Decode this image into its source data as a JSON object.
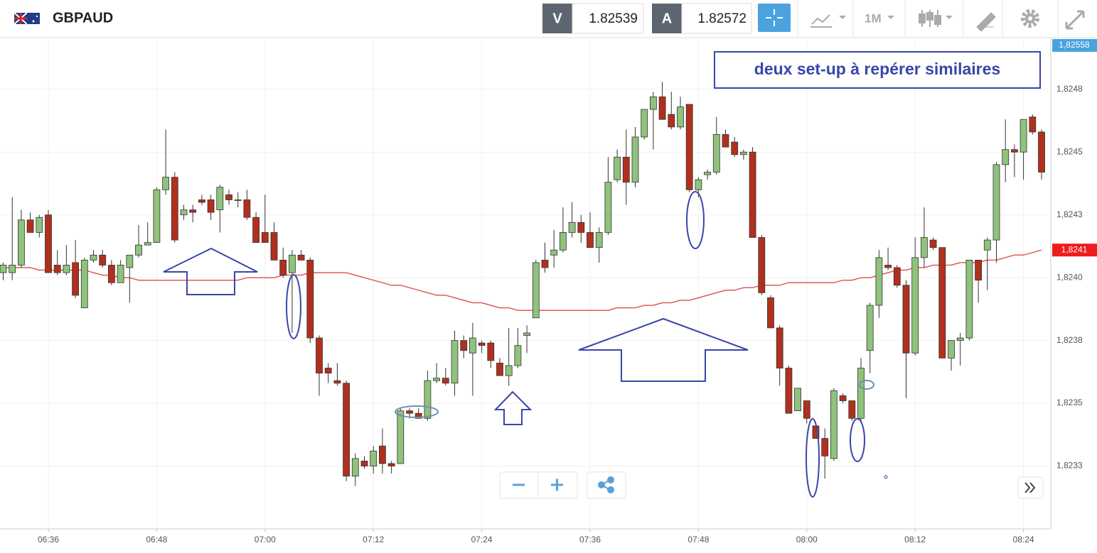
{
  "header": {
    "symbol": "GBPAUD",
    "bid_label": "V",
    "bid": 1.82539,
    "ask_label": "A",
    "ask": 1.82572,
    "timeframe": "1M"
  },
  "chart_data": {
    "type": "candlestick",
    "annotation": "deux set-up à repérer similaires",
    "up_color": "#8fc27c",
    "down_color": "#b1301d",
    "x": [
      "06:31",
      "06:32",
      "06:33",
      "06:34",
      "06:35",
      "06:36",
      "06:37",
      "06:38",
      "06:39",
      "06:40",
      "06:41",
      "06:42",
      "06:43",
      "06:44",
      "06:45",
      "06:46",
      "06:47",
      "06:48",
      "06:49",
      "06:50",
      "06:51",
      "06:52",
      "06:53",
      "06:54",
      "06:55",
      "06:56",
      "06:57",
      "06:58",
      "06:59",
      "07:00",
      "07:01",
      "07:02",
      "07:03",
      "07:04",
      "07:05",
      "07:06",
      "07:07",
      "07:08",
      "07:09",
      "07:10",
      "07:11",
      "07:12",
      "07:13",
      "07:14",
      "07:15",
      "07:16",
      "07:17",
      "07:18",
      "07:19",
      "07:20",
      "07:21",
      "07:22",
      "07:23",
      "07:24",
      "07:25",
      "07:26",
      "07:27",
      "07:28",
      "07:29",
      "07:30",
      "07:31",
      "07:32",
      "07:33",
      "07:34",
      "07:35",
      "07:36",
      "07:37",
      "07:38",
      "07:39",
      "07:40",
      "07:41",
      "07:42",
      "07:43",
      "07:44",
      "07:45",
      "07:46",
      "07:47",
      "07:48",
      "07:49",
      "07:50",
      "07:51",
      "07:52",
      "07:53",
      "07:54",
      "07:55",
      "07:56",
      "07:57",
      "07:58",
      "07:59",
      "08:00",
      "08:01",
      "08:02",
      "08:03",
      "08:04",
      "08:05",
      "08:06",
      "08:07",
      "08:08",
      "08:09",
      "08:10",
      "08:11",
      "08:12",
      "08:13",
      "08:14",
      "08:15",
      "08:16",
      "08:17",
      "08:18",
      "08:19",
      "08:20",
      "08:21",
      "08:22",
      "08:23",
      "08:24",
      "08:25",
      "08:26"
    ],
    "open": [
      1.82402,
      1.82402,
      1.82405,
      1.82423,
      1.82418,
      1.82425,
      1.82405,
      1.82402,
      1.82406,
      1.82388,
      1.82407,
      1.82409,
      1.82405,
      1.82398,
      1.82404,
      1.82409,
      1.82413,
      1.82414,
      1.82435,
      1.8244,
      1.82425,
      1.82427,
      1.82431,
      1.82431,
      1.82427,
      1.82433,
      1.82431,
      1.82431,
      1.82424,
      1.82418,
      1.82418,
      1.82407,
      1.82402,
      1.82409,
      1.82407,
      1.82376,
      1.82364,
      1.82359,
      1.82358,
      1.82321,
      1.82327,
      1.82325,
      1.82333,
      1.82326,
      1.82326,
      1.82347,
      1.82346,
      1.82344,
      1.82359,
      1.8236,
      1.82358,
      1.82375,
      1.8237,
      1.82374,
      1.82374,
      1.82366,
      1.82361,
      1.82365,
      1.82377,
      1.82384,
      1.82407,
      1.82409,
      1.82411,
      1.82418,
      1.82422,
      1.82418,
      1.82412,
      1.82418,
      1.82439,
      1.82448,
      1.82438,
      1.82456,
      1.82467,
      1.82472,
      1.82465,
      1.8246,
      1.82469,
      1.82435,
      1.82441,
      1.82442,
      1.82457,
      1.82454,
      1.82449,
      1.8245,
      1.82416,
      1.82392,
      1.8238,
      1.82364,
      1.82347,
      1.82351,
      1.82341,
      1.82336,
      1.82328,
      1.82353,
      1.82351,
      1.82344,
      1.82371,
      1.82389,
      1.82405,
      1.82404,
      1.82397,
      1.8237,
      1.82408,
      1.82415,
      1.82412,
      1.82368,
      1.82375,
      1.82376,
      1.82407,
      1.82411,
      1.82415,
      1.82445,
      1.82451,
      1.8245,
      1.82464,
      1.82458
    ],
    "high": [
      1.82406,
      1.82432,
      1.82427,
      1.82426,
      1.82425,
      1.82427,
      1.82411,
      1.82413,
      1.82415,
      1.82408,
      1.82411,
      1.82411,
      1.82407,
      1.82407,
      1.82409,
      1.82421,
      1.82422,
      1.82436,
      1.82459,
      1.82442,
      1.82429,
      1.82429,
      1.82433,
      1.82433,
      1.82437,
      1.82435,
      1.82434,
      1.82435,
      1.82426,
      1.82433,
      1.82422,
      1.82412,
      1.82411,
      1.82411,
      1.82408,
      1.82377,
      1.82366,
      1.82366,
      1.82359,
      1.8233,
      1.82329,
      1.82333,
      1.8234,
      1.82327,
      1.82348,
      1.82348,
      1.82348,
      1.82363,
      1.82366,
      1.82364,
      1.82379,
      1.82377,
      1.82382,
      1.82375,
      1.82375,
      1.82368,
      1.8238,
      1.8238,
      1.82381,
      1.82407,
      1.82414,
      1.82419,
      1.82428,
      1.8243,
      1.82425,
      1.82426,
      1.8242,
      1.82448,
      1.82451,
      1.82459,
      1.8246,
      1.82467,
      1.82474,
      1.82478,
      1.82474,
      1.82472,
      1.82469,
      1.8244,
      1.82443,
      1.82464,
      1.82459,
      1.82456,
      1.82451,
      1.82452,
      1.82417,
      1.82393,
      1.82381,
      1.82365,
      1.82356,
      1.82351,
      1.82342,
      1.8234,
      1.82356,
      1.82354,
      1.82351,
      1.82368,
      1.8239,
      1.82411,
      1.82412,
      1.82405,
      1.82399,
      1.82416,
      1.82428,
      1.82416,
      1.82412,
      1.82375,
      1.82378,
      1.82407,
      1.82407,
      1.82416,
      1.82446,
      1.82463,
      1.82453,
      1.82463,
      1.82465,
      1.82459
    ],
    "low": [
      1.82399,
      1.82399,
      1.82404,
      1.82418,
      1.82416,
      1.82402,
      1.82401,
      1.82401,
      1.82392,
      1.82388,
      1.82406,
      1.82404,
      1.82397,
      1.82398,
      1.8239,
      1.82408,
      1.82413,
      1.82414,
      1.82433,
      1.82414,
      1.82423,
      1.82422,
      1.82429,
      1.82423,
      1.82418,
      1.82429,
      1.82428,
      1.82423,
      1.82414,
      1.82414,
      1.82407,
      1.824,
      1.82378,
      1.82407,
      1.82374,
      1.82353,
      1.82358,
      1.82357,
      1.82319,
      1.82317,
      1.82324,
      1.82322,
      1.82322,
      1.82322,
      1.82326,
      1.82344,
      1.82344,
      1.82343,
      1.82358,
      1.82357,
      1.82353,
      1.82368,
      1.82353,
      1.8237,
      1.82364,
      1.82361,
      1.82357,
      1.82364,
      1.8237,
      1.82384,
      1.82402,
      1.82404,
      1.8241,
      1.82416,
      1.82414,
      1.82412,
      1.82406,
      1.82417,
      1.82438,
      1.82429,
      1.82436,
      1.82455,
      1.82451,
      1.82463,
      1.82459,
      1.82459,
      1.82434,
      1.82432,
      1.82439,
      1.82441,
      1.82452,
      1.82448,
      1.82447,
      1.82416,
      1.82393,
      1.8238,
      1.82357,
      1.82346,
      1.82347,
      1.82342,
      1.82336,
      1.8232,
      1.82327,
      1.8235,
      1.82343,
      1.82343,
      1.82362,
      1.82384,
      1.82403,
      1.82396,
      1.82352,
      1.82369,
      1.82404,
      1.82411,
      1.82368,
      1.82363,
      1.82365,
      1.82375,
      1.8239,
      1.82395,
      1.82406,
      1.82438,
      1.8244,
      1.82439,
      1.82457,
      1.82439
    ],
    "close": [
      1.82405,
      1.82405,
      1.82423,
      1.82418,
      1.82424,
      1.82402,
      1.82402,
      1.82405,
      1.82393,
      1.82407,
      1.82409,
      1.82405,
      1.82398,
      1.82405,
      1.82409,
      1.82413,
      1.82414,
      1.82435,
      1.8244,
      1.82415,
      1.82427,
      1.82426,
      1.8243,
      1.82426,
      1.82436,
      1.82431,
      1.82431,
      1.82424,
      1.82414,
      1.82414,
      1.82407,
      1.82401,
      1.82409,
      1.82407,
      1.82376,
      1.82362,
      1.82362,
      1.82358,
      1.82321,
      1.82328,
      1.82325,
      1.82331,
      1.82326,
      1.82325,
      1.82347,
      1.82346,
      1.82344,
      1.82359,
      1.8236,
      1.82358,
      1.82375,
      1.82371,
      1.82376,
      1.82373,
      1.82367,
      1.82361,
      1.82365,
      1.82373,
      1.82378,
      1.82406,
      1.82404,
      1.82411,
      1.82418,
      1.82422,
      1.82418,
      1.82412,
      1.82418,
      1.82438,
      1.82448,
      1.82438,
      1.82456,
      1.82467,
      1.82472,
      1.82463,
      1.8246,
      1.82468,
      1.82435,
      1.82439,
      1.82442,
      1.82457,
      1.82452,
      1.82449,
      1.8245,
      1.82416,
      1.82394,
      1.8238,
      1.82364,
      1.82346,
      1.82356,
      1.82344,
      1.82336,
      1.82329,
      1.82355,
      1.82351,
      1.82344,
      1.82364,
      1.82389,
      1.82408,
      1.82404,
      1.82397,
      1.8237,
      1.82408,
      1.82416,
      1.82412,
      1.82368,
      1.82375,
      1.82376,
      1.82407,
      1.82399,
      1.82415,
      1.82445,
      1.82451,
      1.8245,
      1.82463,
      1.82458,
      1.82442
    ],
    "ma": {
      "color": "#e05a5a",
      "values": [
        1.82404,
        1.82404,
        1.82404,
        1.82404,
        1.82403,
        1.82403,
        1.82403,
        1.82403,
        1.82403,
        1.82403,
        1.82402,
        1.82401,
        1.82401,
        1.824,
        1.824,
        1.82399,
        1.82399,
        1.82399,
        1.82399,
        1.82399,
        1.82399,
        1.82399,
        1.82399,
        1.82399,
        1.82399,
        1.82399,
        1.82399,
        1.824,
        1.824,
        1.824,
        1.824,
        1.82401,
        1.82401,
        1.82401,
        1.82402,
        1.82402,
        1.82402,
        1.82402,
        1.82402,
        1.82401,
        1.824,
        1.82399,
        1.82398,
        1.82397,
        1.82397,
        1.82396,
        1.82395,
        1.82394,
        1.82393,
        1.82393,
        1.82392,
        1.82391,
        1.8239,
        1.8239,
        1.82389,
        1.82388,
        1.82388,
        1.82387,
        1.82387,
        1.82387,
        1.82387,
        1.82387,
        1.82387,
        1.82387,
        1.82387,
        1.82387,
        1.82387,
        1.82387,
        1.82388,
        1.82388,
        1.82388,
        1.82389,
        1.82389,
        1.8239,
        1.8239,
        1.82391,
        1.82391,
        1.82392,
        1.82393,
        1.82394,
        1.82395,
        1.82395,
        1.82396,
        1.82396,
        1.82397,
        1.82397,
        1.82397,
        1.82398,
        1.82398,
        1.82398,
        1.82398,
        1.82398,
        1.82398,
        1.82399,
        1.82399,
        1.824,
        1.824,
        1.82401,
        1.82402,
        1.82403,
        1.82403,
        1.82404,
        1.82404,
        1.82405,
        1.82405,
        1.82405,
        1.82406,
        1.82406,
        1.82406,
        1.82407,
        1.82407,
        1.82408,
        1.82409,
        1.82409,
        1.8241,
        1.82411
      ],
      "label": {
        "value": 1.82411,
        "label": "1,8241"
      }
    },
    "last_price_label": "1,82558",
    "xlim": [
      "06:31",
      "08:26"
    ],
    "xticks": [
      "06:36",
      "06:48",
      "07:00",
      "07:12",
      "07:24",
      "07:36",
      "07:48",
      "08:00",
      "08:12",
      "08:24"
    ],
    "ylim": [
      1.823,
      1.82495
    ],
    "yticks": [
      {
        "value": 1.82325,
        "label": "1,8233"
      },
      {
        "value": 1.8235,
        "label": "1,8235"
      },
      {
        "value": 1.82375,
        "label": "1,8238"
      },
      {
        "value": 1.824,
        "label": "1,8240"
      },
      {
        "value": 1.82425,
        "label": "1,8243"
      },
      {
        "value": 1.8245,
        "label": "1,8245"
      },
      {
        "value": 1.82475,
        "label": "1,8248"
      }
    ],
    "grid": true
  }
}
